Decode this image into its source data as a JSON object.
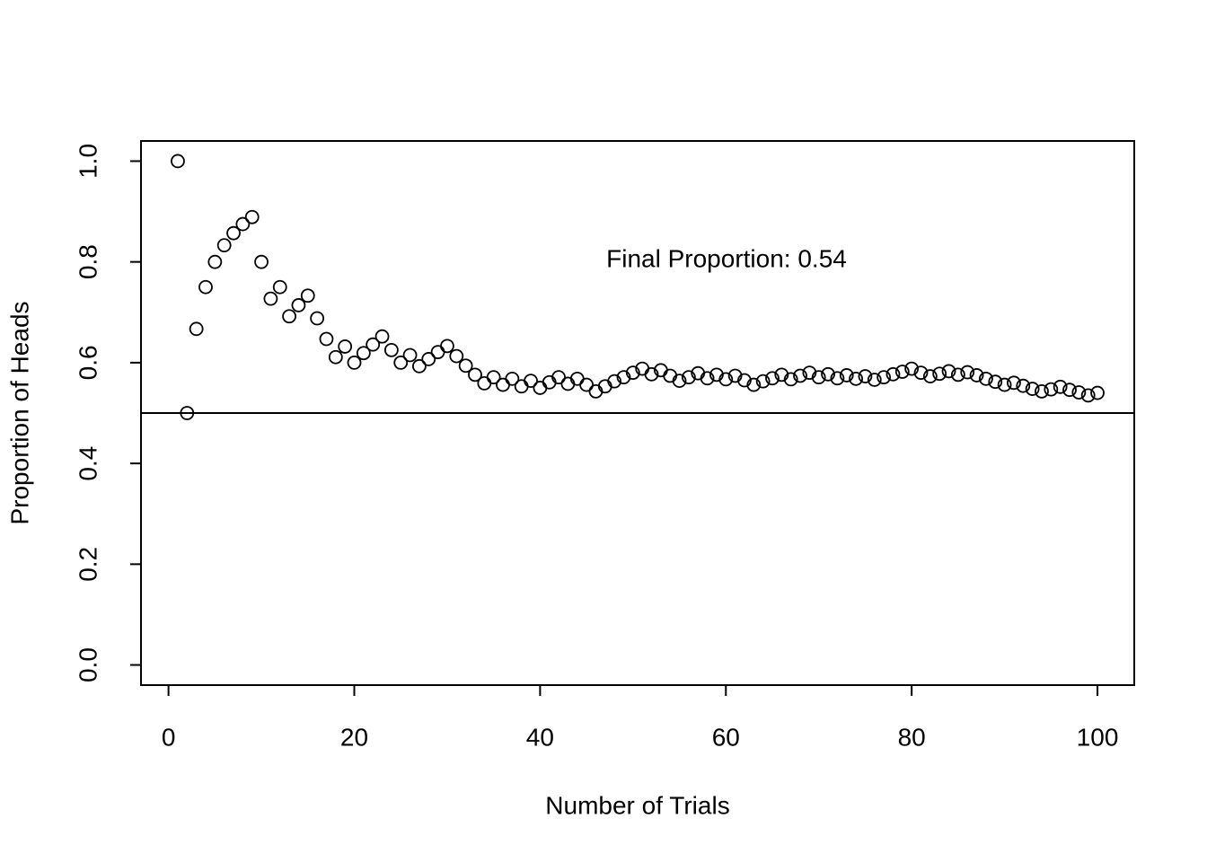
{
  "chart_data": {
    "type": "scatter",
    "xlabel": "Number of Trials",
    "ylabel": "Proportion of Heads",
    "annotation": "Final Proportion:  0.54",
    "color": "#000000",
    "hline": 0.5,
    "xlim": [
      -2.96,
      103.96
    ],
    "ylim": [
      -0.04,
      1.04
    ],
    "xticks": [
      0,
      20,
      40,
      60,
      80,
      100
    ],
    "yticks": [
      {
        "value": 0,
        "label": "0.0"
      },
      0.2,
      0.4,
      0.6,
      0.8,
      {
        "value": 1,
        "label": "1.0"
      }
    ],
    "x": [
      1,
      2,
      3,
      4,
      5,
      6,
      7,
      8,
      9,
      10,
      11,
      12,
      13,
      14,
      15,
      16,
      17,
      18,
      19,
      20,
      21,
      22,
      23,
      24,
      25,
      26,
      27,
      28,
      29,
      30,
      31,
      32,
      33,
      34,
      35,
      36,
      37,
      38,
      39,
      40,
      41,
      42,
      43,
      44,
      45,
      46,
      47,
      48,
      49,
      50,
      51,
      52,
      53,
      54,
      55,
      56,
      57,
      58,
      59,
      60,
      61,
      62,
      63,
      64,
      65,
      66,
      67,
      68,
      69,
      70,
      71,
      72,
      73,
      74,
      75,
      76,
      77,
      78,
      79,
      80,
      81,
      82,
      83,
      84,
      85,
      86,
      87,
      88,
      89,
      90,
      91,
      92,
      93,
      94,
      95,
      96,
      97,
      98,
      99,
      100
    ],
    "values": [
      1.0,
      0.5,
      0.667,
      0.75,
      0.8,
      0.833,
      0.857,
      0.875,
      0.889,
      0.8,
      0.727,
      0.75,
      0.692,
      0.714,
      0.733,
      0.688,
      0.647,
      0.611,
      0.632,
      0.6,
      0.619,
      0.636,
      0.652,
      0.625,
      0.6,
      0.615,
      0.593,
      0.607,
      0.621,
      0.633,
      0.613,
      0.594,
      0.576,
      0.559,
      0.571,
      0.556,
      0.568,
      0.553,
      0.564,
      0.55,
      0.561,
      0.571,
      0.558,
      0.568,
      0.556,
      0.543,
      0.553,
      0.563,
      0.571,
      0.58,
      0.588,
      0.577,
      0.585,
      0.574,
      0.564,
      0.571,
      0.579,
      0.569,
      0.576,
      0.567,
      0.574,
      0.565,
      0.556,
      0.563,
      0.569,
      0.576,
      0.567,
      0.574,
      0.58,
      0.571,
      0.577,
      0.569,
      0.575,
      0.568,
      0.573,
      0.566,
      0.571,
      0.577,
      0.582,
      0.588,
      0.58,
      0.573,
      0.578,
      0.583,
      0.576,
      0.581,
      0.575,
      0.568,
      0.562,
      0.556,
      0.56,
      0.554,
      0.548,
      0.543,
      0.547,
      0.552,
      0.546,
      0.541,
      0.535,
      0.54
    ]
  }
}
